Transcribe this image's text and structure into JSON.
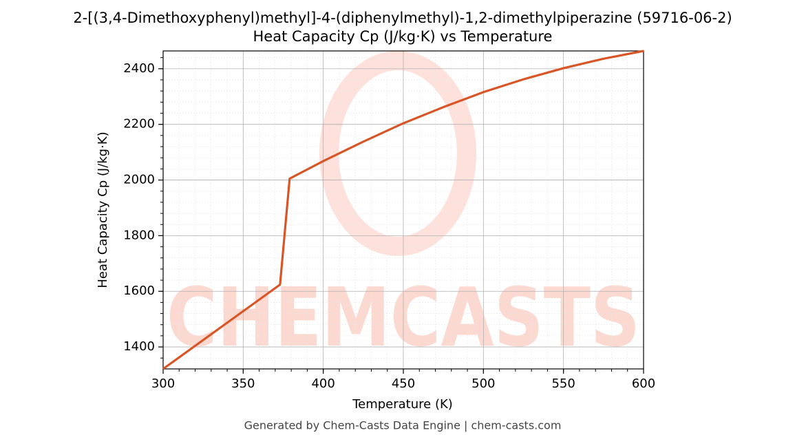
{
  "chart_data": {
    "type": "line",
    "title": "2-[(3,4-Dimethoxyphenyl)methyl]-4-(diphenylmethyl)-1,2-dimethylpiperazine (59716-06-2)",
    "subtitle": "Heat Capacity Cp (J/kg·K) vs Temperature",
    "x_label": "Temperature (K)",
    "y_label": "Heat Capacity Cp (J/kg·K)",
    "x": [
      300,
      373,
      379,
      400,
      425,
      450,
      475,
      500,
      525,
      550,
      575,
      600
    ],
    "series": [
      {
        "name": "Heat Capacity Cp",
        "color": "#d95525",
        "values": [
          1321,
          1624,
          2005,
          2068,
          2138,
          2204,
          2262,
          2316,
          2362,
          2402,
          2436,
          2464
        ]
      }
    ],
    "xlim": [
      300,
      600
    ],
    "xticks": [
      300,
      350,
      400,
      450,
      500,
      550,
      600
    ],
    "ylim": [
      1321,
      2464
    ],
    "yticks": [
      1400,
      1600,
      1800,
      2000,
      2200,
      2400
    ],
    "grid": true,
    "minor_grid": true,
    "watermark": "CHEMCASTS",
    "footer": "Generated by Chem-Casts Data Engine | chem-casts.com"
  }
}
